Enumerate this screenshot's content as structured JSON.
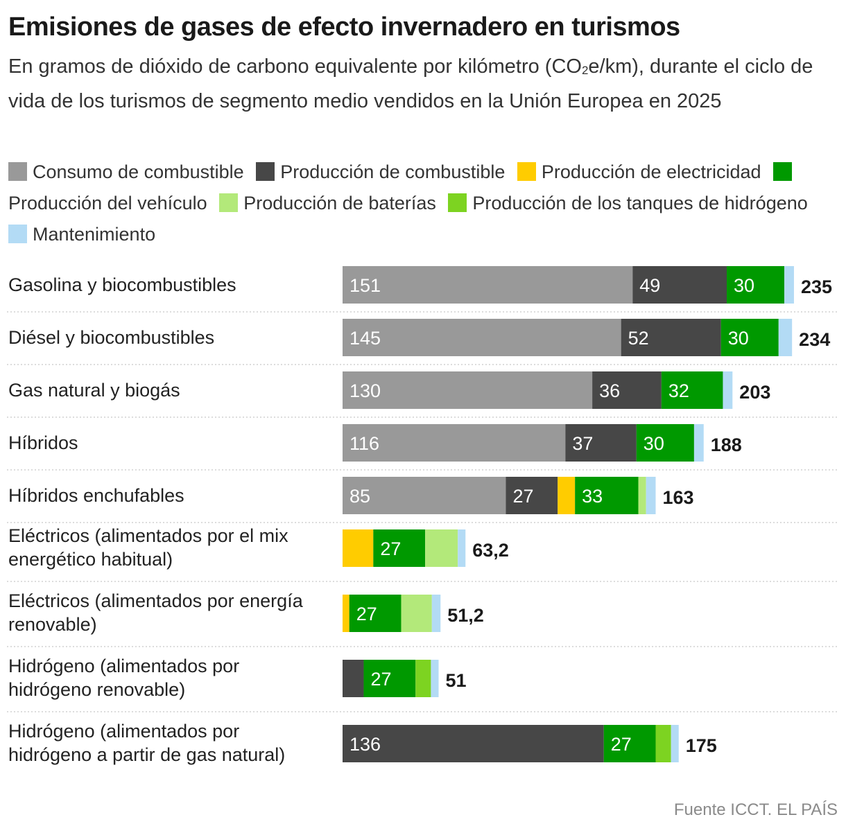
{
  "chart_data": {
    "type": "bar",
    "orientation": "horizontal",
    "stacked": true,
    "title": "Emisiones de gases de efecto invernadero en turismos",
    "subtitle_parts": [
      "En gramos de dióxido de carbono equivalente por kilómetro (CO",
      "2",
      "e/km), durante el ciclo de vida de los turismos de segmento medio vendidos en la Unión Europea en 2025"
    ],
    "legend": [
      {
        "name": "Consumo de combustible",
        "color": "#999999"
      },
      {
        "name": "Producción de combustible",
        "color": "#474747"
      },
      {
        "name": "Producción de electricidad",
        "color": "#ffcc00"
      },
      {
        "name": "Producción del vehículo",
        "color": "#009900"
      },
      {
        "name": "Producción de baterías",
        "color": "#b3e97a"
      },
      {
        "name": "Producción de los tanques de hidrógeno",
        "color": "#7dd321"
      },
      {
        "name": "Mantenimiento",
        "color": "#b3dbf5"
      }
    ],
    "categories": [
      [
        "Gasolina y biocombustibles"
      ],
      [
        "Diésel y biocombustibles"
      ],
      [
        "Gas natural y biogás"
      ],
      [
        "Híbridos"
      ],
      [
        "Híbridos enchufables"
      ],
      [
        "Eléctricos (alimentados por el mix",
        "energético habitual)"
      ],
      [
        "Eléctricos (alimentados por energía",
        "renovable)"
      ],
      [
        "Hidrógeno (alimentados por",
        "hidrógeno renovable)"
      ],
      [
        "Hidrógeno (alimentados por",
        "hidrógeno a partir de gas natural)"
      ]
    ],
    "series": [
      {
        "name": "Consumo de combustible",
        "values": [
          151,
          145,
          130,
          116,
          85,
          0,
          0,
          0,
          0
        ]
      },
      {
        "name": "Producción de combustible",
        "values": [
          49,
          52,
          36,
          37,
          27,
          0,
          0,
          11,
          136
        ]
      },
      {
        "name": "Producción de electricidad",
        "values": [
          0,
          0,
          0,
          0,
          9,
          16,
          3.5,
          0,
          0
        ]
      },
      {
        "name": "Producción del vehículo",
        "values": [
          30,
          30,
          32,
          30,
          33,
          27,
          27,
          27,
          27
        ]
      },
      {
        "name": "Producción de baterías",
        "values": [
          0,
          0,
          0,
          0,
          4,
          17,
          16,
          0,
          0
        ]
      },
      {
        "name": "Producción de los tanques de hidrógeno",
        "values": [
          0,
          0,
          0,
          0,
          0,
          0,
          0,
          8,
          8
        ]
      },
      {
        "name": "Mantenimiento",
        "values": [
          5,
          7,
          5,
          5,
          5,
          4,
          4.5,
          4,
          4
        ]
      }
    ],
    "value_labels": [
      [
        "151",
        "49",
        "",
        "30",
        "",
        "",
        ""
      ],
      [
        "145",
        "52",
        "",
        "30",
        "",
        "",
        ""
      ],
      [
        "130",
        "36",
        "",
        "32",
        "",
        "",
        ""
      ],
      [
        "116",
        "37",
        "",
        "30",
        "",
        "",
        ""
      ],
      [
        "85",
        "27",
        "",
        "33",
        "",
        "",
        ""
      ],
      [
        "",
        "",
        "",
        "27",
        "",
        "",
        ""
      ],
      [
        "",
        "",
        "",
        "27",
        "",
        "",
        ""
      ],
      [
        "",
        "",
        "",
        "27",
        "",
        "",
        ""
      ],
      [
        "",
        "136",
        "",
        "27",
        "",
        "",
        ""
      ]
    ],
    "totals": [
      "235",
      "234",
      "203",
      "188",
      "163",
      "63,2",
      "51,2",
      "51",
      "175"
    ],
    "xlim": [
      0,
      235
    ]
  },
  "source": "Fuente ICCT. EL PAÍS"
}
